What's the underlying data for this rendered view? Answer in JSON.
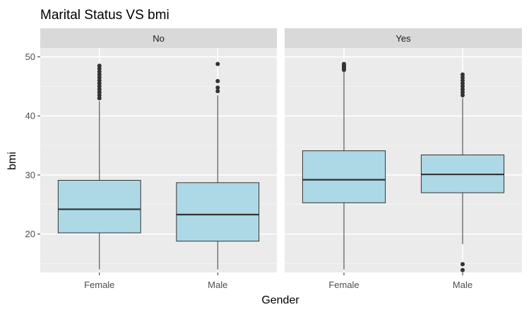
{
  "chart_data": {
    "type": "boxplot",
    "title": "Marital Status VS bmi",
    "xlabel": "Gender",
    "ylabel": "bmi",
    "ylim": [
      13.5,
      51.5
    ],
    "yticks": [
      20,
      30,
      40,
      50
    ],
    "facets": [
      "No",
      "Yes"
    ],
    "categories": [
      "Female",
      "Male"
    ],
    "box_fill": "#add8e6",
    "panel_bg": "#ebebeb",
    "strip_bg": "#d9d9d9",
    "grid": true,
    "boxes": [
      {
        "facet": "No",
        "category": "Female",
        "whisker_low": 14.0,
        "q1": 20.2,
        "median": 24.2,
        "q3": 29.1,
        "whisker_high": 42.5,
        "outliers": [
          43.0,
          43.5,
          44.0,
          44.5,
          45.0,
          45.5,
          46.0,
          46.5,
          47.0,
          47.5,
          48.0,
          48.5
        ]
      },
      {
        "facet": "No",
        "category": "Male",
        "whisker_low": 14.0,
        "q1": 18.8,
        "median": 23.3,
        "q3": 28.7,
        "whisker_high": 43.5,
        "outliers": [
          44.2,
          44.8,
          45.9,
          48.8
        ]
      },
      {
        "facet": "Yes",
        "category": "Female",
        "whisker_low": 14.0,
        "q1": 25.3,
        "median": 29.2,
        "q3": 34.1,
        "whisker_high": 47.5,
        "outliers": [
          47.8,
          48.0,
          48.2,
          48.4,
          48.6,
          48.8
        ]
      },
      {
        "facet": "Yes",
        "category": "Male",
        "whisker_low": 18.3,
        "q1": 27.0,
        "median": 30.1,
        "q3": 33.4,
        "whisker_high": 43.0,
        "outliers": [
          13.9,
          14.9,
          43.5,
          44.0,
          44.5,
          45.0,
          45.5,
          46.0,
          46.5,
          47.0
        ]
      }
    ]
  }
}
